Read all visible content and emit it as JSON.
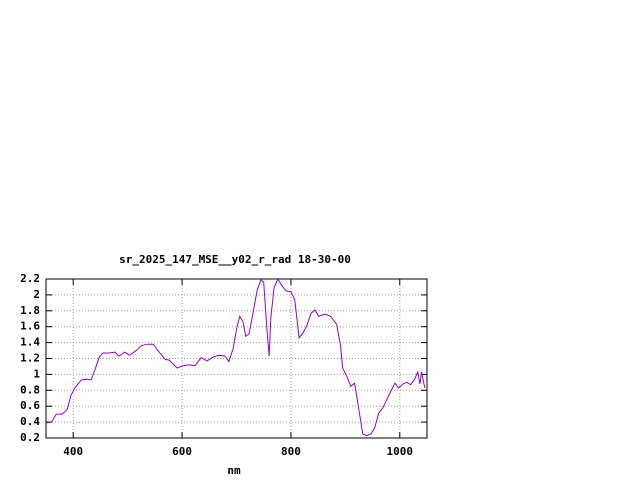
{
  "chart_data": {
    "type": "line",
    "title": "sr_2025_147_MSE__y02_r_rad 18-30-00",
    "x_label": "nm",
    "x": [
      350,
      360,
      369,
      380,
      389,
      396,
      404,
      415,
      426,
      433,
      440,
      448,
      455,
      466,
      477,
      484,
      495,
      503,
      514,
      525,
      536,
      547,
      558,
      569,
      576,
      591,
      602,
      613,
      624,
      635,
      646,
      657,
      668,
      679,
      686,
      694,
      701,
      706,
      712,
      717,
      723,
      730,
      738,
      745,
      750,
      756,
      760,
      763,
      769,
      776,
      783,
      791,
      800,
      807,
      815,
      822,
      829,
      837,
      844,
      851,
      862,
      873,
      884,
      891,
      895,
      903,
      910,
      917,
      925,
      932,
      939,
      947,
      954,
      961,
      969,
      976,
      983,
      991,
      998,
      1006,
      1013,
      1020,
      1028,
      1033,
      1037,
      1040,
      1046
    ],
    "series": [
      {
        "color": "#9400d3",
        "values": [
          0.39,
          0.4,
          0.5,
          0.5,
          0.56,
          0.74,
          0.84,
          0.93,
          0.94,
          0.93,
          1.06,
          1.22,
          1.27,
          1.27,
          1.28,
          1.23,
          1.28,
          1.24,
          1.29,
          1.36,
          1.38,
          1.38,
          1.28,
          1.19,
          1.18,
          1.08,
          1.11,
          1.12,
          1.11,
          1.21,
          1.17,
          1.22,
          1.24,
          1.23,
          1.16,
          1.33,
          1.6,
          1.73,
          1.66,
          1.48,
          1.51,
          1.76,
          2.06,
          2.19,
          2.16,
          1.56,
          1.23,
          1.71,
          2.09,
          2.2,
          2.12,
          2.05,
          2.04,
          1.94,
          1.46,
          1.52,
          1.61,
          1.77,
          1.81,
          1.73,
          1.76,
          1.73,
          1.63,
          1.37,
          1.08,
          0.97,
          0.85,
          0.89,
          0.55,
          0.25,
          0.23,
          0.25,
          0.33,
          0.51,
          0.58,
          0.68,
          0.78,
          0.89,
          0.83,
          0.88,
          0.9,
          0.87,
          0.95,
          1.03,
          0.88,
          1.03,
          0.83
        ]
      }
    ],
    "xlim": [
      350,
      1050
    ],
    "xticks": [
      400,
      600,
      800,
      1000
    ],
    "ylim": [
      0.2,
      2.2
    ],
    "yticks": [
      0.2,
      0.4,
      0.6,
      0.8,
      1,
      1.2,
      1.4,
      1.6,
      1.8,
      2,
      2.2
    ],
    "grid": true
  }
}
